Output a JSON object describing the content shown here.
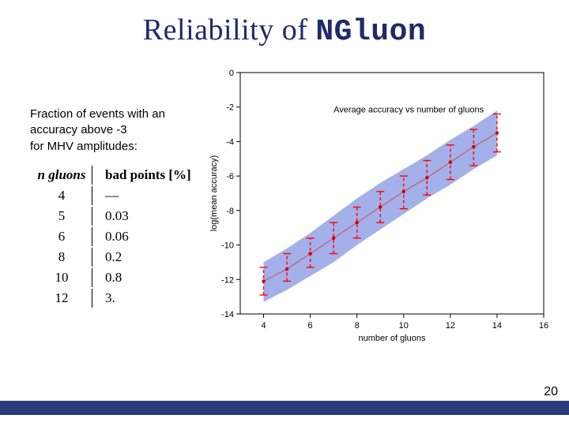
{
  "title": {
    "prefix": "Reliability of ",
    "mono": "NGluon"
  },
  "caption": {
    "l1": "Fraction of events with an",
    "l2": "accuracy above -3",
    "l3": "for MHV amplitudes:"
  },
  "table": {
    "headA": "n gluons",
    "headB": "bad points [%]",
    "rows": [
      {
        "n": "4",
        "pct": "—"
      },
      {
        "n": "5",
        "pct": "0.03"
      },
      {
        "n": "6",
        "pct": "0.06"
      },
      {
        "n": "8",
        "pct": "0.2"
      },
      {
        "n": "10",
        "pct": "0.8"
      },
      {
        "n": "12",
        "pct": "3."
      }
    ]
  },
  "chart": {
    "type": "scatter",
    "title_text": "Average accuracy vs number of gluons",
    "title_fontsize": 11,
    "title_color": "#1a1a9a",
    "xlabel": "number of gluons",
    "ylabel": "log(mean accuracy)",
    "label_fontsize": 11,
    "label_color": "#1a1a9a",
    "tick_fontsize": 11,
    "xlim": [
      3,
      16
    ],
    "ylim": [
      -14,
      0
    ],
    "xticks": [
      4,
      6,
      8,
      10,
      12,
      14,
      16
    ],
    "yticks": [
      0,
      -2,
      -4,
      -6,
      -8,
      -10,
      -12,
      -14
    ],
    "background": "#ffffff",
    "axis_color": "#000000",
    "band_color": "#9aa7e8",
    "band_points": [
      {
        "x": 4,
        "lo": -13.3,
        "hi": -11.0
      },
      {
        "x": 5,
        "lo": -12.6,
        "hi": -10.2
      },
      {
        "x": 6,
        "lo": -11.8,
        "hi": -9.3
      },
      {
        "x": 7,
        "lo": -11.0,
        "hi": -8.3
      },
      {
        "x": 8,
        "lo": -10.0,
        "hi": -7.3
      },
      {
        "x": 9,
        "lo": -9.1,
        "hi": -6.4
      },
      {
        "x": 10,
        "lo": -8.2,
        "hi": -5.6
      },
      {
        "x": 11,
        "lo": -7.3,
        "hi": -4.8
      },
      {
        "x": 12,
        "lo": -6.5,
        "hi": -3.9
      },
      {
        "x": 13,
        "lo": -5.6,
        "hi": -3.1
      },
      {
        "x": 14,
        "lo": -4.8,
        "hi": -2.2
      }
    ],
    "points": [
      {
        "x": 4,
        "y": -12.1,
        "err_lo": -12.9,
        "err_hi": -11.3
      },
      {
        "x": 5,
        "y": -11.4,
        "err_lo": -12.1,
        "err_hi": -10.5
      },
      {
        "x": 6,
        "y": -10.5,
        "err_lo": -11.3,
        "err_hi": -9.6
      },
      {
        "x": 7,
        "y": -9.6,
        "err_lo": -10.5,
        "err_hi": -8.7
      },
      {
        "x": 8,
        "y": -8.7,
        "err_lo": -9.6,
        "err_hi": -7.8
      },
      {
        "x": 9,
        "y": -7.8,
        "err_lo": -8.7,
        "err_hi": -6.9
      },
      {
        "x": 10,
        "y": -6.9,
        "err_lo": -7.9,
        "err_hi": -6.0
      },
      {
        "x": 11,
        "y": -6.1,
        "err_lo": -7.1,
        "err_hi": -5.1
      },
      {
        "x": 12,
        "y": -5.2,
        "err_lo": -6.2,
        "err_hi": -4.2
      },
      {
        "x": 13,
        "y": -4.3,
        "err_lo": -5.4,
        "err_hi": -3.3
      },
      {
        "x": 14,
        "y": -3.5,
        "err_lo": -4.6,
        "err_hi": -2.4
      }
    ],
    "point_color": "#cc0000",
    "point_radius": 2.2,
    "err_color": "#ff0000",
    "err_dash": "4,3",
    "err_cap": 5,
    "line_color": "#d04040",
    "line_width": 0.9
  },
  "footer": {
    "page": "20",
    "bar_color": "#2a3a7a"
  }
}
